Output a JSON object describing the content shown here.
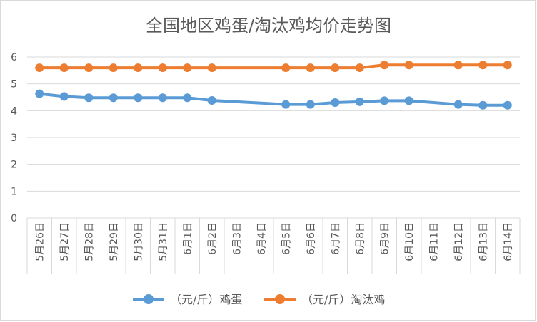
{
  "chart_data": {
    "type": "line",
    "title": "全国地区鸡蛋/淘汰鸡均价走势图",
    "xlabel": "",
    "ylabel": "",
    "ylim": [
      0,
      6
    ],
    "yticks": [
      0,
      1,
      2,
      3,
      4,
      5,
      6
    ],
    "grid": true,
    "legend_position": "bottom",
    "categories": [
      "5月26日",
      "5月27日",
      "5月28日",
      "5月29日",
      "5月30日",
      "5月31日",
      "6月1日",
      "6月2日",
      "6月3日",
      "6月4日",
      "6月5日",
      "6月6日",
      "6月7日",
      "6月8日",
      "6月9日",
      "6月10日",
      "6月11日",
      "6月12日",
      "6月13日",
      "6月14日"
    ],
    "series": [
      {
        "name": "（元/斤）鸡蛋",
        "color": "#5b9bd5",
        "values": [
          4.63,
          4.53,
          4.48,
          4.48,
          4.48,
          4.48,
          4.48,
          4.38,
          null,
          null,
          4.23,
          4.23,
          4.3,
          4.33,
          4.37,
          4.37,
          null,
          4.23,
          4.2,
          4.2
        ]
      },
      {
        "name": "（元/斤）淘汰鸡",
        "color": "#ed7d31",
        "values": [
          5.6,
          5.6,
          5.6,
          5.6,
          5.6,
          5.6,
          5.6,
          5.6,
          null,
          null,
          5.6,
          5.6,
          5.6,
          5.6,
          5.7,
          5.7,
          null,
          5.7,
          5.7,
          5.7
        ]
      }
    ]
  }
}
